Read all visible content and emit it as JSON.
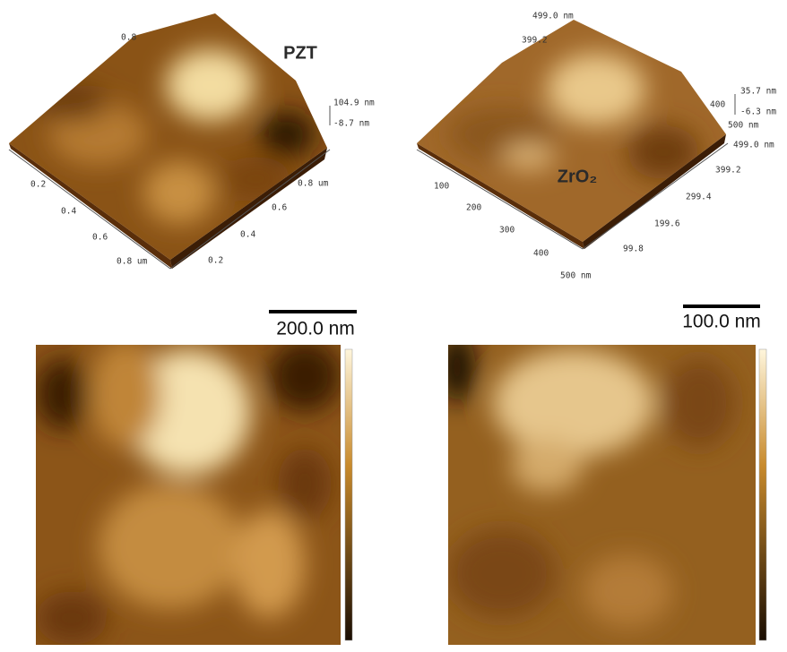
{
  "panels": [
    {
      "label": "PZT",
      "z_labels": [
        "104.9 nm",
        "-8.7 nm"
      ],
      "top_labels": [
        "0.8"
      ],
      "left_axis": [
        "0.2",
        "0.4",
        "0.6",
        "0.8 um"
      ],
      "right_axis": [
        "0.2",
        "0.4",
        "0.6",
        "0.8 um"
      ]
    },
    {
      "label": "ZrO₂",
      "z_labels": [
        "35.7 nm",
        "-6.3 nm"
      ],
      "top_labels": [
        "499.0 nm",
        "399.2",
        "400",
        "500 nm"
      ],
      "left_axis": [
        "100",
        "200",
        "300",
        "400",
        "500 nm"
      ],
      "right_axis": [
        "99.8",
        "199.6",
        "299.4",
        "399.2",
        "499.0 nm"
      ]
    }
  ],
  "scale_bars": [
    "200.0 nm",
    "100.0 nm"
  ]
}
